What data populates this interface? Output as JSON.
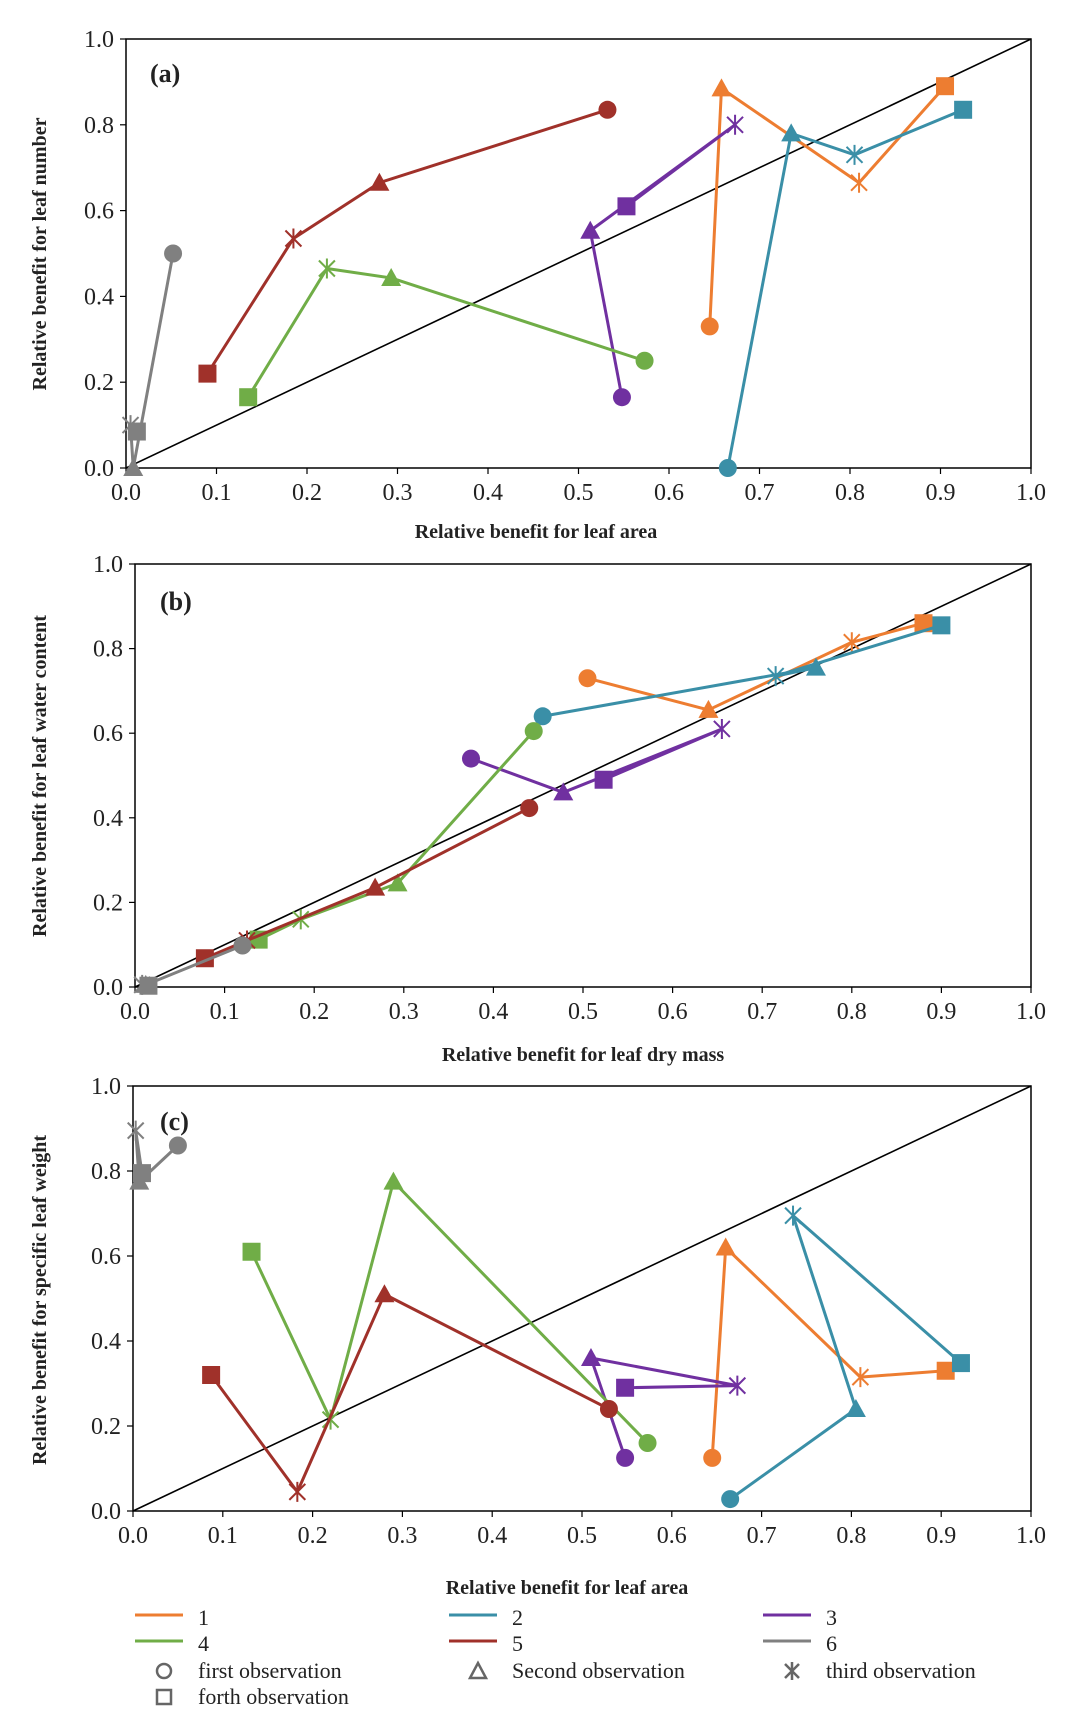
{
  "colors": {
    "1": "#ED7D31",
    "2": "#3A8FA7",
    "3": "#7030A0",
    "4": "#70AD47",
    "5": "#A0312A",
    "6": "#808080",
    "identity": "#000000",
    "axis": "#000000"
  },
  "legend": {
    "series": [
      {
        "key": "1",
        "label": "1"
      },
      {
        "key": "2",
        "label": "2"
      },
      {
        "key": "3",
        "label": "3"
      },
      {
        "key": "4",
        "label": "4"
      },
      {
        "key": "5",
        "label": "5"
      },
      {
        "key": "6",
        "label": "6"
      }
    ],
    "markers": [
      {
        "icon": "circle-icon",
        "label": "first observation"
      },
      {
        "icon": "triangle-icon",
        "label": "Second observation"
      },
      {
        "icon": "x-star-icon",
        "label": "third observation"
      },
      {
        "icon": "square-icon",
        "label": "forth observation"
      }
    ]
  },
  "chart_data": [
    {
      "type": "scatter",
      "panel": "(a)",
      "xlabel": "Relative benefit for leaf area",
      "ylabel": "Relative benefit for leaf number",
      "xlim": [
        0,
        1
      ],
      "ylim": [
        0,
        1
      ],
      "xticks": [
        "0.0",
        "0.1",
        "0.2",
        "0.3",
        "0.4",
        "0.5",
        "0.6",
        "0.7",
        "0.8",
        "0.9",
        "1.0"
      ],
      "yticks": [
        "0.0",
        "0.2",
        "0.4",
        "0.6",
        "0.8",
        "1.0"
      ],
      "reference_line": "y = x",
      "series": [
        {
          "name": "1",
          "points": [
            [
              0.645,
              0.33
            ],
            [
              0.658,
              0.885
            ],
            [
              0.81,
              0.665
            ],
            [
              0.905,
              0.89
            ]
          ]
        },
        {
          "name": "2",
          "points": [
            [
              0.665,
              0.0
            ],
            [
              0.735,
              0.78
            ],
            [
              0.805,
              0.73
            ],
            [
              0.925,
              0.835
            ]
          ]
        },
        {
          "name": "3",
          "points": [
            [
              0.548,
              0.165
            ],
            [
              0.513,
              0.553
            ],
            [
              0.673,
              0.8
            ],
            [
              0.553,
              0.61
            ]
          ]
        },
        {
          "name": "4",
          "points": [
            [
              0.573,
              0.25
            ],
            [
              0.293,
              0.443
            ],
            [
              0.222,
              0.465
            ],
            [
              0.135,
              0.165
            ]
          ]
        },
        {
          "name": "5",
          "points": [
            [
              0.532,
              0.835
            ],
            [
              0.28,
              0.665
            ],
            [
              0.185,
              0.535
            ],
            [
              0.09,
              0.22
            ]
          ]
        },
        {
          "name": "6",
          "points": [
            [
              0.052,
              0.5
            ],
            [
              0.008,
              0.0
            ],
            [
              0.005,
              0.1
            ],
            [
              0.012,
              0.085
            ]
          ]
        }
      ]
    },
    {
      "type": "scatter",
      "panel": "(b)",
      "xlabel": "Relative benefit for leaf dry mass",
      "ylabel": "Relative benefit for leaf water content",
      "xlim": [
        0,
        1
      ],
      "ylim": [
        0,
        1
      ],
      "xticks": [
        "0.0",
        "0.1",
        "0.2",
        "0.3",
        "0.4",
        "0.5",
        "0.6",
        "0.7",
        "0.8",
        "0.9",
        "1.0"
      ],
      "yticks": [
        "0.0",
        "0.2",
        "0.4",
        "0.6",
        "0.8",
        "1.0"
      ],
      "reference_line": "y = x",
      "series": [
        {
          "name": "1",
          "points": [
            [
              0.505,
              0.73
            ],
            [
              0.64,
              0.655
            ],
            [
              0.8,
              0.815
            ],
            [
              0.88,
              0.86
            ]
          ]
        },
        {
          "name": "2",
          "points": [
            [
              0.455,
              0.64
            ],
            [
              0.76,
              0.755
            ],
            [
              0.715,
              0.735
            ],
            [
              0.9,
              0.855
            ]
          ]
        },
        {
          "name": "3",
          "points": [
            [
              0.375,
              0.54
            ],
            [
              0.478,
              0.46
            ],
            [
              0.655,
              0.61
            ],
            [
              0.523,
              0.49
            ]
          ]
        },
        {
          "name": "4",
          "points": [
            [
              0.445,
              0.605
            ],
            [
              0.293,
              0.245
            ],
            [
              0.185,
              0.16
            ],
            [
              0.138,
              0.112
            ]
          ]
        },
        {
          "name": "5",
          "points": [
            [
              0.44,
              0.423
            ],
            [
              0.268,
              0.235
            ],
            [
              0.125,
              0.11
            ],
            [
              0.078,
              0.068
            ]
          ]
        },
        {
          "name": "6",
          "points": [
            [
              0.12,
              0.098
            ],
            [
              0.012,
              0.005
            ],
            [
              0.008,
              0.005
            ],
            [
              0.015,
              0.003
            ]
          ]
        }
      ]
    },
    {
      "type": "scatter",
      "panel": "(c)",
      "xlabel": "Relative benefit for leaf area",
      "ylabel": "Relative benefit for specific leaf weight",
      "xlim": [
        0,
        1
      ],
      "ylim": [
        0,
        1
      ],
      "xticks": [
        "0.0",
        "0.1",
        "0.2",
        "0.3",
        "0.4",
        "0.5",
        "0.6",
        "0.7",
        "0.8",
        "0.9",
        "1.0"
      ],
      "yticks": [
        "0.0",
        "0.2",
        "0.4",
        "0.6",
        "0.8",
        "1.0"
      ],
      "reference_line": "y = x",
      "series": [
        {
          "name": "1",
          "points": [
            [
              0.645,
              0.125
            ],
            [
              0.66,
              0.62
            ],
            [
              0.81,
              0.315
            ],
            [
              0.905,
              0.33
            ]
          ]
        },
        {
          "name": "2",
          "points": [
            [
              0.665,
              0.028
            ],
            [
              0.805,
              0.24
            ],
            [
              0.735,
              0.695
            ],
            [
              0.922,
              0.348
            ]
          ]
        },
        {
          "name": "3",
          "points": [
            [
              0.548,
              0.125
            ],
            [
              0.51,
              0.36
            ],
            [
              0.673,
              0.295
            ],
            [
              0.548,
              0.29
            ]
          ]
        },
        {
          "name": "4",
          "points": [
            [
              0.573,
              0.16
            ],
            [
              0.29,
              0.775
            ],
            [
              0.22,
              0.215
            ],
            [
              0.132,
              0.61
            ]
          ]
        },
        {
          "name": "5",
          "points": [
            [
              0.53,
              0.24
            ],
            [
              0.28,
              0.51
            ],
            [
              0.183,
              0.045
            ],
            [
              0.087,
              0.32
            ]
          ]
        },
        {
          "name": "6",
          "points": [
            [
              0.05,
              0.86
            ],
            [
              0.007,
              0.775
            ],
            [
              0.003,
              0.895
            ],
            [
              0.01,
              0.795
            ]
          ]
        }
      ]
    }
  ]
}
